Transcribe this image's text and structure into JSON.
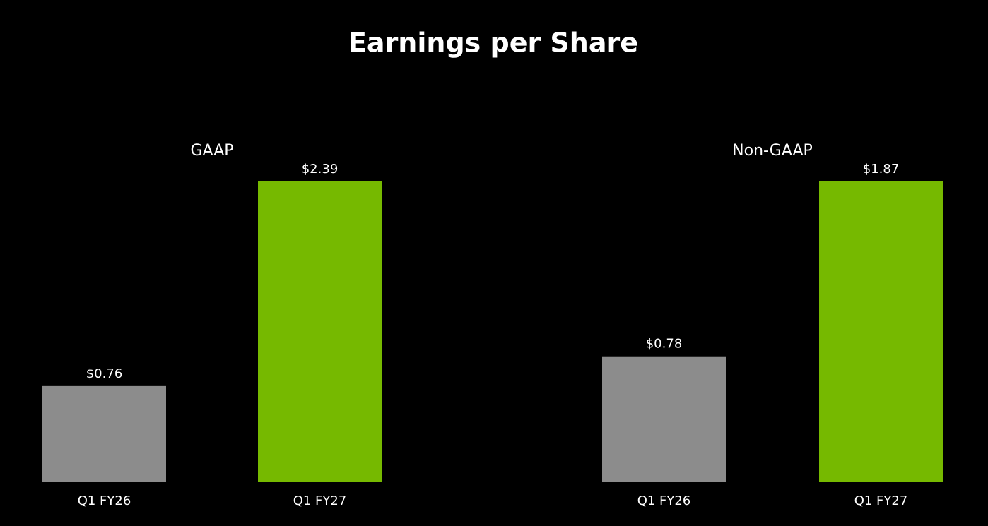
{
  "title": "Earnings per Share",
  "chart_data": [
    {
      "type": "bar",
      "title": "GAAP",
      "categories": [
        "Q1 FY26",
        "Q1 FY27"
      ],
      "values": [
        0.76,
        2.39
      ],
      "value_labels": [
        "$0.76",
        "$2.39"
      ],
      "colors": [
        "#8c8c8c",
        "#76b900"
      ],
      "ylim": [
        0,
        2.39
      ]
    },
    {
      "type": "bar",
      "title": "Non-GAAP",
      "categories": [
        "Q1 FY26",
        "Q1 FY27"
      ],
      "values": [
        0.78,
        1.87
      ],
      "value_labels": [
        "$0.78",
        "$1.87"
      ],
      "colors": [
        "#8c8c8c",
        "#76b900"
      ],
      "ylim": [
        0,
        1.87
      ]
    }
  ]
}
